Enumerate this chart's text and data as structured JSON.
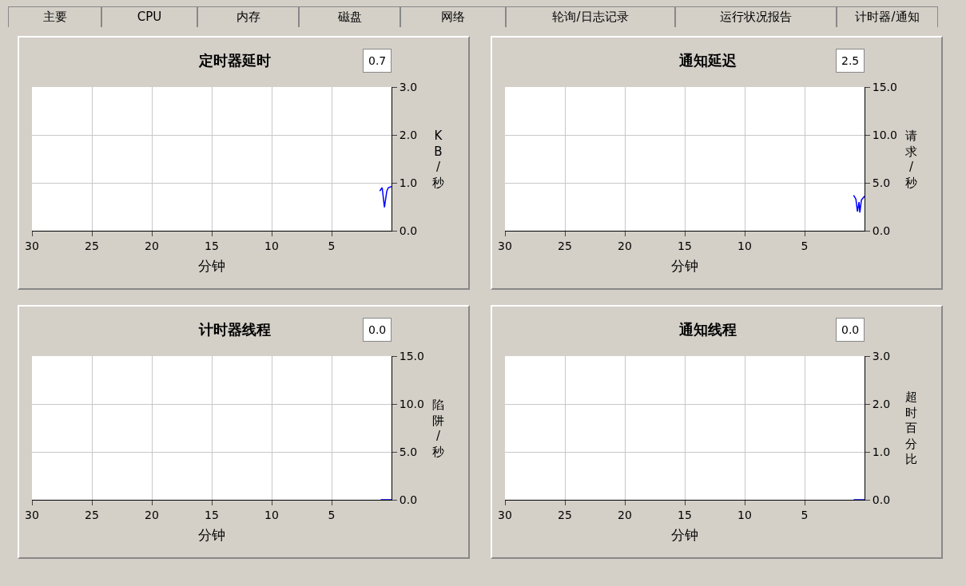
{
  "chart_data": [
    {
      "type": "other",
      "annotations": [
        "主要",
        "CPU",
        "内存",
        "磁盘",
        "网络",
        "轮询/日志记录",
        "运行状况报告",
        "计时器/通知"
      ]
    },
    {
      "type": "line",
      "title": "定时器延时",
      "annotations": [
        "0.7"
      ],
      "xlabel": "分钟",
      "ylabel": "KB/秒",
      "x": [
        0.98,
        0.78,
        0.59,
        0.39,
        0.26,
        0
      ],
      "values": [
        0.83,
        0.9,
        0.49,
        0.83,
        0.9,
        0.92
      ],
      "color": "#0000ff",
      "xlim": [
        30,
        0
      ],
      "xticks": [
        30,
        25,
        20,
        15,
        10,
        5
      ],
      "ylim": [
        0,
        3
      ],
      "yticks": [
        {
          "value": 0,
          "label": "0.0"
        },
        {
          "value": 1,
          "label": "1.0"
        },
        {
          "value": 2,
          "label": "2.0"
        },
        {
          "value": 3,
          "label": "3.0"
        }
      ],
      "grid": true
    },
    {
      "type": "line",
      "title": "通知延迟",
      "annotations": [
        "2.5"
      ],
      "xlabel": "分钟",
      "ylabel": "请求/秒",
      "x": [
        0.91,
        0.72,
        0.59,
        0.46,
        0.39,
        0.26,
        0
      ],
      "values": [
        3.7,
        3.3,
        2.0,
        3.0,
        1.9,
        3.2,
        3.6
      ],
      "color": "#0000ff",
      "xlim": [
        30,
        0
      ],
      "xticks": [
        30,
        25,
        20,
        15,
        10,
        5
      ],
      "ylim": [
        0,
        15
      ],
      "yticks": [
        {
          "value": 0,
          "label": "0.0"
        },
        {
          "value": 5,
          "label": "5.0"
        },
        {
          "value": 10,
          "label": "10.0"
        },
        {
          "value": 15,
          "label": "15.0"
        }
      ],
      "grid": true
    },
    {
      "type": "line",
      "title": "计时器线程",
      "annotations": [
        "0.0"
      ],
      "xlabel": "分钟",
      "ylabel": "陷阱/秒",
      "x": [
        0.9,
        0
      ],
      "values": [
        0,
        0
      ],
      "color": "#0000ff",
      "xlim": [
        30,
        0
      ],
      "xticks": [
        30,
        25,
        20,
        15,
        10,
        5
      ],
      "ylim": [
        0,
        15
      ],
      "yticks": [
        {
          "value": 0,
          "label": "0.0"
        },
        {
          "value": 5,
          "label": "5.0"
        },
        {
          "value": 10,
          "label": "10.0"
        },
        {
          "value": 15,
          "label": "15.0"
        }
      ],
      "grid": true
    },
    {
      "type": "line",
      "title": "通知线程",
      "annotations": [
        "0.0"
      ],
      "xlabel": "分钟",
      "ylabel": "超时百分比",
      "x": [
        0.9,
        0
      ],
      "values": [
        0,
        0
      ],
      "color": "#0000ff",
      "xlim": [
        30,
        0
      ],
      "xticks": [
        30,
        25,
        20,
        15,
        10,
        5
      ],
      "ylim": [
        0,
        3
      ],
      "yticks": [
        {
          "value": 0,
          "label": "0.0"
        },
        {
          "value": 1,
          "label": "1.0"
        },
        {
          "value": 2,
          "label": "2.0"
        },
        {
          "value": 3,
          "label": "3.0"
        }
      ],
      "grid": true
    }
  ]
}
